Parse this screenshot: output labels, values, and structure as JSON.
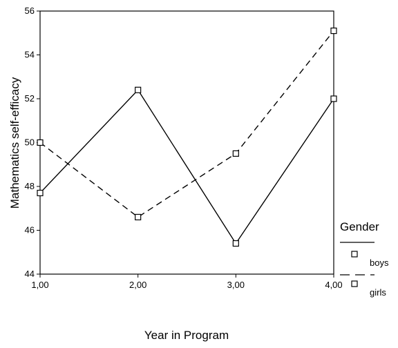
{
  "chart_data": {
    "type": "line",
    "title": "",
    "xlabel": "Year in Program",
    "ylabel": "Mathematics self-efficacy",
    "x": [
      1,
      2,
      3,
      4
    ],
    "x_tick_labels": [
      "1,00",
      "2,00",
      "3,00",
      "4,00"
    ],
    "xlim": [
      1,
      4
    ],
    "ylim": [
      44,
      56
    ],
    "y_ticks": [
      44,
      46,
      48,
      50,
      52,
      54,
      56
    ],
    "grid": false,
    "legend": {
      "title": "Gender",
      "position": "right"
    },
    "series": [
      {
        "name": "boys",
        "values": [
          47.7,
          52.4,
          45.4,
          52.0
        ],
        "line_style": "solid",
        "marker": "square"
      },
      {
        "name": "girls",
        "values": [
          50.0,
          46.6,
          49.5,
          55.1
        ],
        "line_style": "dashed",
        "marker": "square"
      }
    ]
  }
}
